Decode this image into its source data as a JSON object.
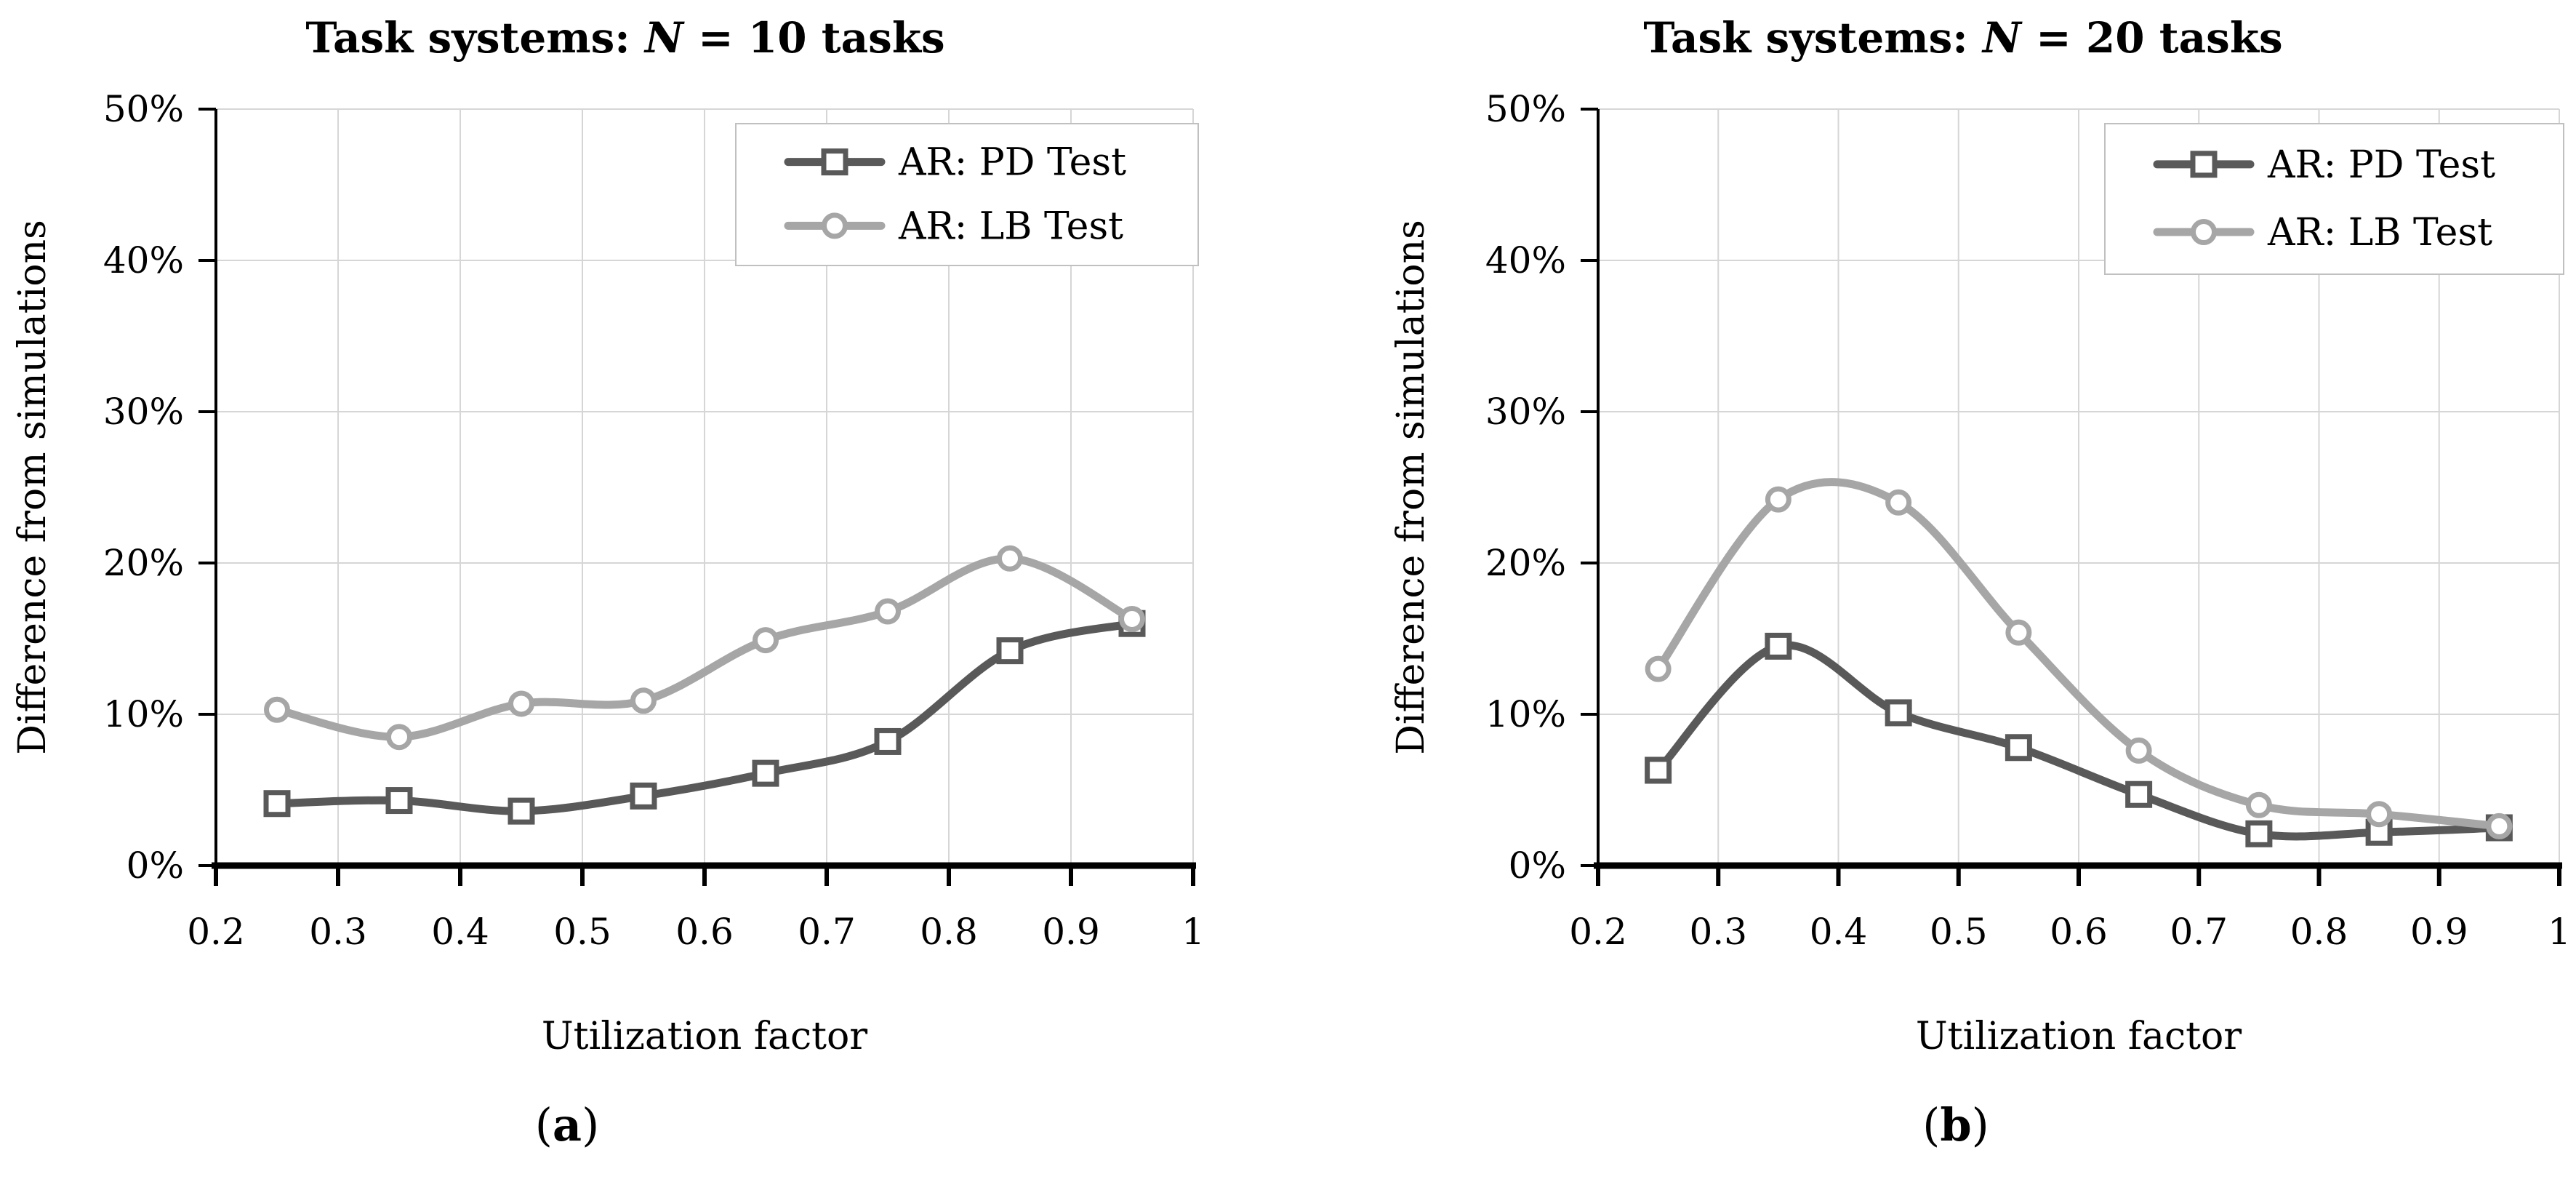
{
  "figure": {
    "captions": {
      "a": {
        "open": "(",
        "letter": "a",
        "close": ")"
      },
      "b": {
        "open": "(",
        "letter": "b",
        "close": ")"
      }
    }
  },
  "chart_data": [
    {
      "type": "line",
      "panel": "a",
      "title_prefix": "Task systems: ",
      "title_italic": "N",
      "title_suffix": " = 10 tasks",
      "xlabel": "Utilization factor",
      "ylabel": "Difference from simulations",
      "xlim": [
        0.2,
        1.0
      ],
      "ylim": [
        0,
        50
      ],
      "grid": true,
      "legend_position": "top-right",
      "x_tick_labels": [
        "0.2",
        "0.3",
        "0.4",
        "0.5",
        "0.6",
        "0.7",
        "0.8",
        "0.9",
        "1"
      ],
      "y_tick_labels": [
        "0%",
        "10%",
        "20%",
        "30%",
        "40%",
        "50%"
      ],
      "x": [
        0.25,
        0.35,
        0.45,
        0.55,
        0.65,
        0.75,
        0.85,
        0.95
      ],
      "series": [
        {
          "name": "AR: PD Test",
          "marker": "square",
          "color": "#595959",
          "values": [
            4.1,
            4.3,
            3.6,
            4.6,
            6.1,
            8.2,
            14.2,
            16.0
          ]
        },
        {
          "name": "AR: LB Test",
          "marker": "circle",
          "color": "#a6a6a6",
          "values": [
            10.3,
            8.5,
            10.7,
            10.9,
            14.9,
            16.8,
            20.3,
            16.3
          ]
        }
      ]
    },
    {
      "type": "line",
      "panel": "b",
      "title_prefix": "Task systems: ",
      "title_italic": "N",
      "title_suffix": " = 20 tasks",
      "xlabel": "Utilization factor",
      "ylabel": "Difference from simulations",
      "xlim": [
        0.2,
        1.0
      ],
      "ylim": [
        0,
        50
      ],
      "grid": true,
      "legend_position": "top-right",
      "x_tick_labels": [
        "0.2",
        "0.3",
        "0.4",
        "0.5",
        "0.6",
        "0.7",
        "0.8",
        "0.9",
        "1"
      ],
      "y_tick_labels": [
        "0%",
        "10%",
        "20%",
        "30%",
        "40%",
        "50%"
      ],
      "x": [
        0.25,
        0.35,
        0.45,
        0.55,
        0.65,
        0.75,
        0.85,
        0.95
      ],
      "series": [
        {
          "name": "AR: PD Test",
          "marker": "square",
          "color": "#595959",
          "values": [
            6.3,
            14.5,
            10.1,
            7.8,
            4.7,
            2.1,
            2.2,
            2.5
          ]
        },
        {
          "name": "AR: LB Test",
          "marker": "circle",
          "color": "#a6a6a6",
          "values": [
            13.0,
            24.2,
            24.0,
            15.4,
            7.6,
            4.0,
            3.4,
            2.6
          ]
        }
      ]
    }
  ],
  "style_colors": {
    "pd_line": "#595959",
    "lb_line": "#a6a6a6",
    "gridline": "#d6d6d6",
    "legend_border": "#c0c0c0",
    "axis": "#000000"
  }
}
